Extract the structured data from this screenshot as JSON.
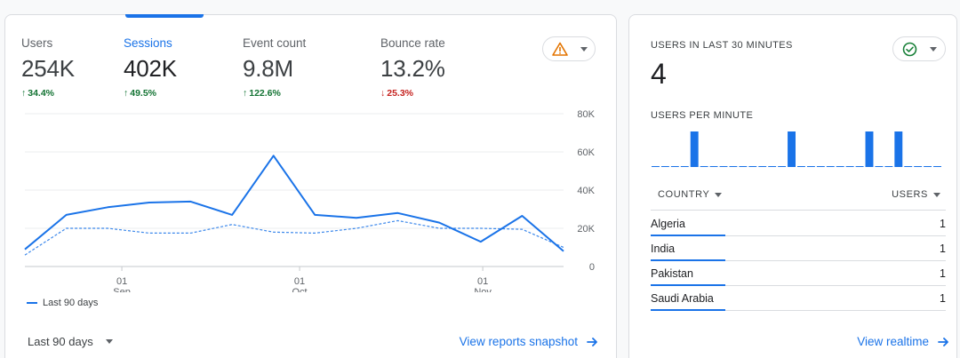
{
  "summary": {
    "metrics": [
      {
        "label": "Users",
        "value": "254K",
        "change": "34.4%",
        "direction": "up"
      },
      {
        "label": "Sessions",
        "value": "402K",
        "change": "49.5%",
        "direction": "up"
      },
      {
        "label": "Event count",
        "value": "9.8M",
        "change": "122.6%",
        "direction": "up"
      },
      {
        "label": "Bounce rate",
        "value": "13.2%",
        "change": "25.3%",
        "direction": "down"
      }
    ],
    "alert_icon": "warning-icon",
    "alert_color": "#e37400",
    "legend_label": "Last 90 days",
    "period_label": "Last 90 days",
    "link_label": "View reports snapshot"
  },
  "chart_data": {
    "type": "line",
    "x_ticks": [
      {
        "day": "01",
        "month": "Sep"
      },
      {
        "day": "01",
        "month": "Oct"
      },
      {
        "day": "01",
        "month": "Nov"
      }
    ],
    "y_ticks": [
      "80K",
      "60K",
      "40K",
      "20K",
      "0"
    ],
    "ylim": [
      0,
      80000
    ],
    "series": [
      {
        "name": "Last 90 days",
        "color": "#1a73e8",
        "style": "solid",
        "values": [
          9000,
          27000,
          31000,
          33500,
          34000,
          27000,
          58000,
          27000,
          25500,
          28000,
          23000,
          13000,
          26500,
          8000
        ]
      },
      {
        "color": "#1a73e8",
        "style": "dashed",
        "values": [
          6000,
          20000,
          20000,
          17500,
          17500,
          22000,
          18000,
          17500,
          20000,
          24000,
          20000,
          20000,
          19500,
          10000
        ]
      }
    ],
    "grid": true
  },
  "realtime": {
    "title": "USERS IN LAST 30 MINUTES",
    "value": "4",
    "status_icon": "check-circle-icon",
    "status_color": "#188038",
    "per_minute_label": "USERS PER MINUTE",
    "per_minute": [
      0,
      0,
      0,
      0,
      1,
      0,
      0,
      0,
      0,
      0,
      0,
      0,
      0,
      0,
      1,
      0,
      0,
      0,
      0,
      0,
      0,
      0,
      1,
      0,
      0,
      1,
      0,
      0,
      0,
      0
    ],
    "columns": {
      "country": "COUNTRY",
      "users": "USERS"
    },
    "rows": [
      {
        "country": "Algeria",
        "users": "1"
      },
      {
        "country": "India",
        "users": "1"
      },
      {
        "country": "Pakistan",
        "users": "1"
      },
      {
        "country": "Saudi Arabia",
        "users": "1"
      }
    ],
    "link_label": "View realtime"
  }
}
